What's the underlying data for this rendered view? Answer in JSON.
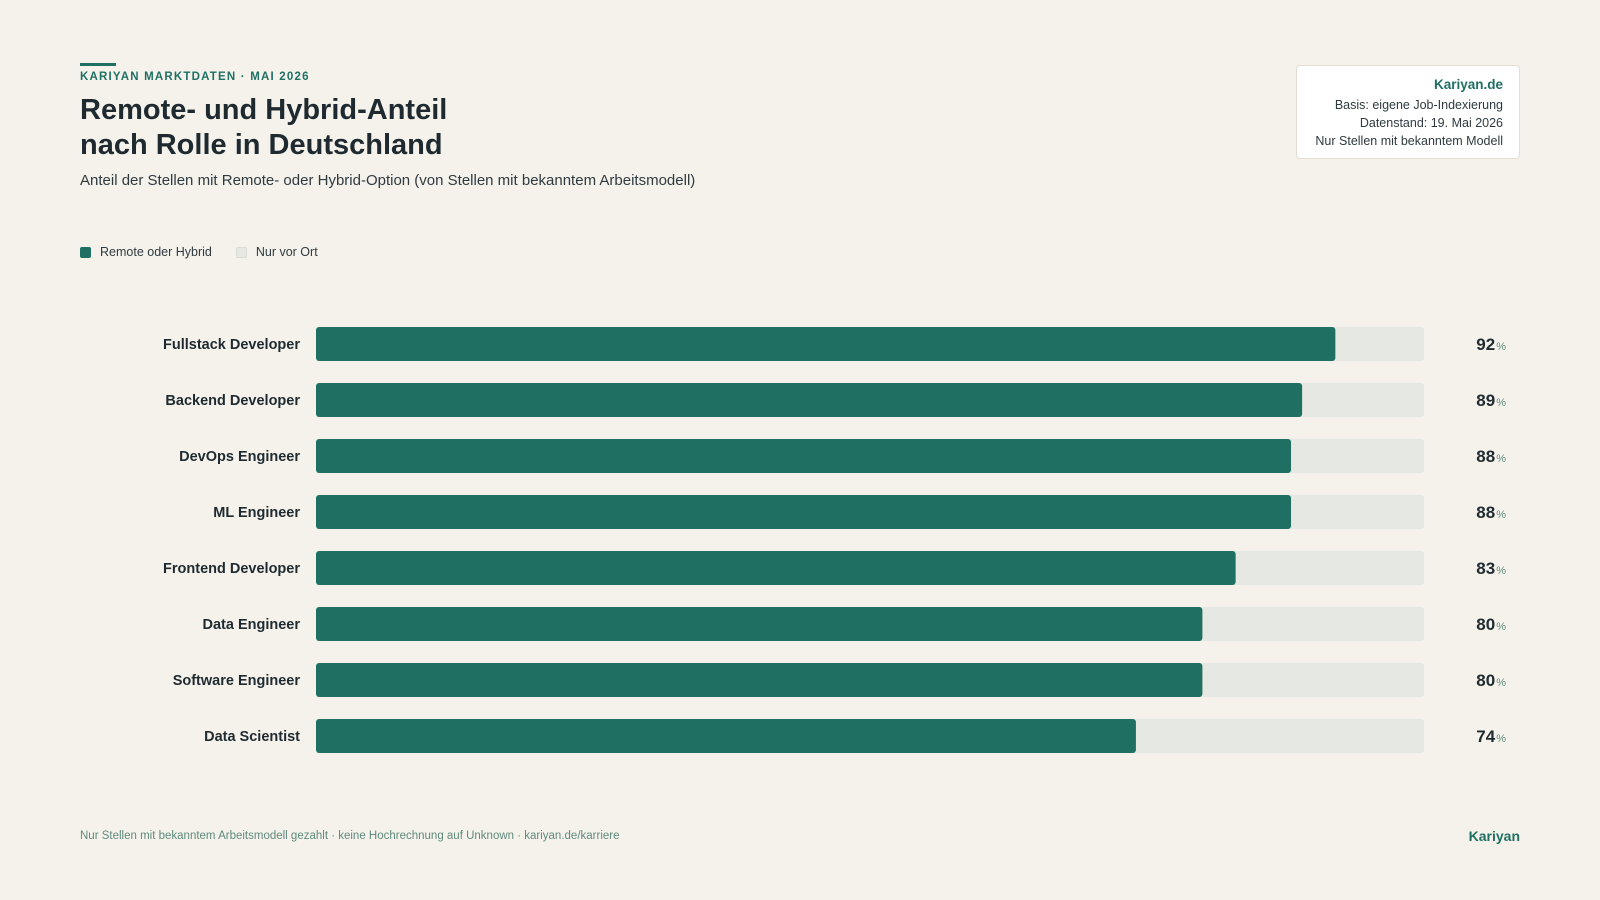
{
  "header": {
    "kicker": "KARIYAN MARKTDATEN · MAI 2026",
    "title_line1": "Remote- und Hybrid-Anteil",
    "title_line2": "nach Rolle in Deutschland",
    "subtitle": "Anteil der Stellen mit Remote- oder Hybrid-Option (von Stellen mit bekanntem Arbeitsmodell)"
  },
  "source_box": {
    "brand": "Kariyan.de",
    "line1": "Basis: eigene Job-Indexierung",
    "line2": "Datenstand: 19. Mai 2026",
    "line3": "Nur Stellen mit bekanntem Modell"
  },
  "legend": {
    "remote_label": "Remote oder Hybrid",
    "onsite_label": "Nur vor Ort"
  },
  "colors": {
    "remote": "#1f7063",
    "onsite": "#e6e9e3",
    "background": "#f5f2eb"
  },
  "chart_data": {
    "type": "bar",
    "orientation": "horizontal",
    "stacked": true,
    "categories": [
      "Fullstack Developer",
      "Backend Developer",
      "DevOps Engineer",
      "ML Engineer",
      "Frontend Developer",
      "Data Engineer",
      "Software Engineer",
      "Data Scientist"
    ],
    "series": [
      {
        "name": "Remote oder Hybrid",
        "values": [
          92,
          89,
          88,
          88,
          83,
          80,
          80,
          74
        ]
      },
      {
        "name": "Nur vor Ort",
        "values": [
          8,
          11,
          12,
          12,
          17,
          20,
          20,
          26
        ]
      }
    ],
    "unit": "%",
    "xlim": [
      0,
      100
    ],
    "grid": false,
    "legend_position": "top-left"
  },
  "footer": {
    "note": "Nur Stellen mit bekanntem Arbeitsmodell gezahlt · keine Hochrechnung auf Unknown · kariyan.de/karriere",
    "brand": "Kariyan"
  }
}
